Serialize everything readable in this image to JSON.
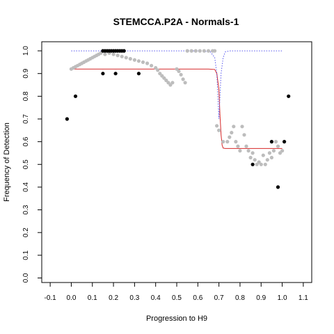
{
  "chart_data": {
    "type": "scatter",
    "title": "STEMCCA.P2A - Normals-1",
    "xlabel": "Progression to H9",
    "ylabel": "Frequency of Detection",
    "xlim": [
      -0.14,
      1.14
    ],
    "ylim": [
      -0.02,
      1.04
    ],
    "xticks": [
      -0.1,
      0.0,
      0.1,
      0.2,
      0.3,
      0.4,
      0.5,
      0.6,
      0.7,
      0.8,
      0.9,
      1.0,
      1.1
    ],
    "xtick_labels": [
      "-0.1",
      "0.0",
      "0.1",
      "0.2",
      "0.3",
      "0.4",
      "0.5",
      "0.6",
      "0.7",
      "0.8",
      "0.9",
      "1.0",
      "1.1"
    ],
    "yticks": [
      0.0,
      0.1,
      0.2,
      0.3,
      0.4,
      0.5,
      0.6,
      0.7,
      0.8,
      0.9,
      1.0
    ],
    "ytick_labels": [
      "0.0",
      "0.1",
      "0.2",
      "0.3",
      "0.4",
      "0.5",
      "0.6",
      "0.7",
      "0.8",
      "0.9",
      "1.0"
    ],
    "grid": false,
    "colors": {
      "black_points": "#000000",
      "gray_points": "#bdbdbd",
      "fit_line": "#d62728",
      "dotted_line": "#5555ee"
    },
    "series": [
      {
        "kind": "points",
        "color": "#bdbdbd",
        "x": [
          0.0,
          0.01,
          0.02,
          0.03,
          0.04,
          0.05,
          0.06,
          0.07,
          0.08,
          0.09,
          0.1,
          0.11,
          0.12,
          0.13,
          0.14,
          0.16,
          0.18,
          0.2,
          0.22,
          0.24,
          0.26,
          0.28,
          0.3,
          0.32,
          0.34,
          0.36,
          0.38,
          0.4,
          0.41,
          0.42,
          0.43,
          0.44,
          0.45,
          0.46,
          0.47,
          0.48,
          0.5,
          0.51,
          0.52,
          0.53,
          0.54,
          0.55,
          0.57,
          0.59,
          0.61,
          0.63,
          0.65,
          0.67,
          0.68,
          0.69,
          0.7,
          0.72,
          0.74,
          0.75,
          0.76,
          0.77,
          0.78,
          0.79,
          0.8,
          0.81,
          0.82,
          0.83,
          0.84,
          0.85,
          0.86,
          0.87,
          0.88,
          0.89,
          0.9,
          0.91,
          0.92,
          0.93,
          0.94,
          0.95,
          0.96,
          0.97,
          0.98,
          0.99,
          1.0
        ],
        "y": [
          0.92,
          0.925,
          0.93,
          0.935,
          0.94,
          0.945,
          0.95,
          0.955,
          0.96,
          0.965,
          0.97,
          0.975,
          0.98,
          0.985,
          0.99,
          0.985,
          0.99,
          0.985,
          0.98,
          0.975,
          0.97,
          0.965,
          0.96,
          0.955,
          0.95,
          0.945,
          0.935,
          0.925,
          0.915,
          0.9,
          0.89,
          0.88,
          0.87,
          0.86,
          0.85,
          0.86,
          0.92,
          0.91,
          0.895,
          0.875,
          0.86,
          1.0,
          1.0,
          1.0,
          1.0,
          1.0,
          1.0,
          1.0,
          1.0,
          0.67,
          0.65,
          0.6,
          0.6,
          0.62,
          0.64,
          0.667,
          0.6,
          0.58,
          0.56,
          0.667,
          0.63,
          0.58,
          0.56,
          0.53,
          0.55,
          0.52,
          0.5,
          0.51,
          0.5,
          0.54,
          0.5,
          0.52,
          0.55,
          0.53,
          0.56,
          0.6,
          0.58,
          0.55,
          0.56
        ]
      },
      {
        "kind": "points",
        "color": "#000000",
        "x": [
          -0.02,
          0.02,
          0.15,
          0.16,
          0.17,
          0.18,
          0.19,
          0.2,
          0.21,
          0.22,
          0.23,
          0.24,
          0.25,
          0.15,
          0.21,
          0.32,
          0.86,
          0.95,
          0.98,
          1.01,
          1.03
        ],
        "y": [
          0.7,
          0.8,
          1.0,
          1.0,
          1.0,
          1.0,
          1.0,
          1.0,
          1.0,
          1.0,
          1.0,
          1.0,
          1.0,
          0.9,
          0.9,
          0.9,
          0.5,
          0.6,
          0.4,
          0.6,
          0.8
        ]
      },
      {
        "kind": "line",
        "style": "solid",
        "color": "#d62728",
        "x": [
          0.0,
          0.1,
          0.2,
          0.3,
          0.4,
          0.5,
          0.6,
          0.65,
          0.68,
          0.69,
          0.7,
          0.705,
          0.71,
          0.715,
          0.72,
          0.73,
          0.75,
          0.8,
          0.9,
          1.0
        ],
        "y": [
          0.92,
          0.92,
          0.92,
          0.92,
          0.92,
          0.92,
          0.92,
          0.92,
          0.918,
          0.9,
          0.83,
          0.72,
          0.63,
          0.585,
          0.572,
          0.57,
          0.57,
          0.57,
          0.57,
          0.57
        ]
      },
      {
        "kind": "line",
        "style": "dotted",
        "color": "#5555ee",
        "x": [
          0.0,
          0.2,
          0.4,
          0.6,
          0.66,
          0.68,
          0.69,
          0.695,
          0.7,
          0.705,
          0.71,
          0.72,
          0.73,
          0.75,
          0.8,
          0.9,
          1.0
        ],
        "y": [
          1.0,
          1.0,
          1.0,
          1.0,
          0.995,
          0.97,
          0.9,
          0.8,
          0.7,
          0.8,
          0.9,
          0.97,
          0.995,
          1.0,
          1.0,
          1.0,
          1.0
        ]
      }
    ]
  }
}
